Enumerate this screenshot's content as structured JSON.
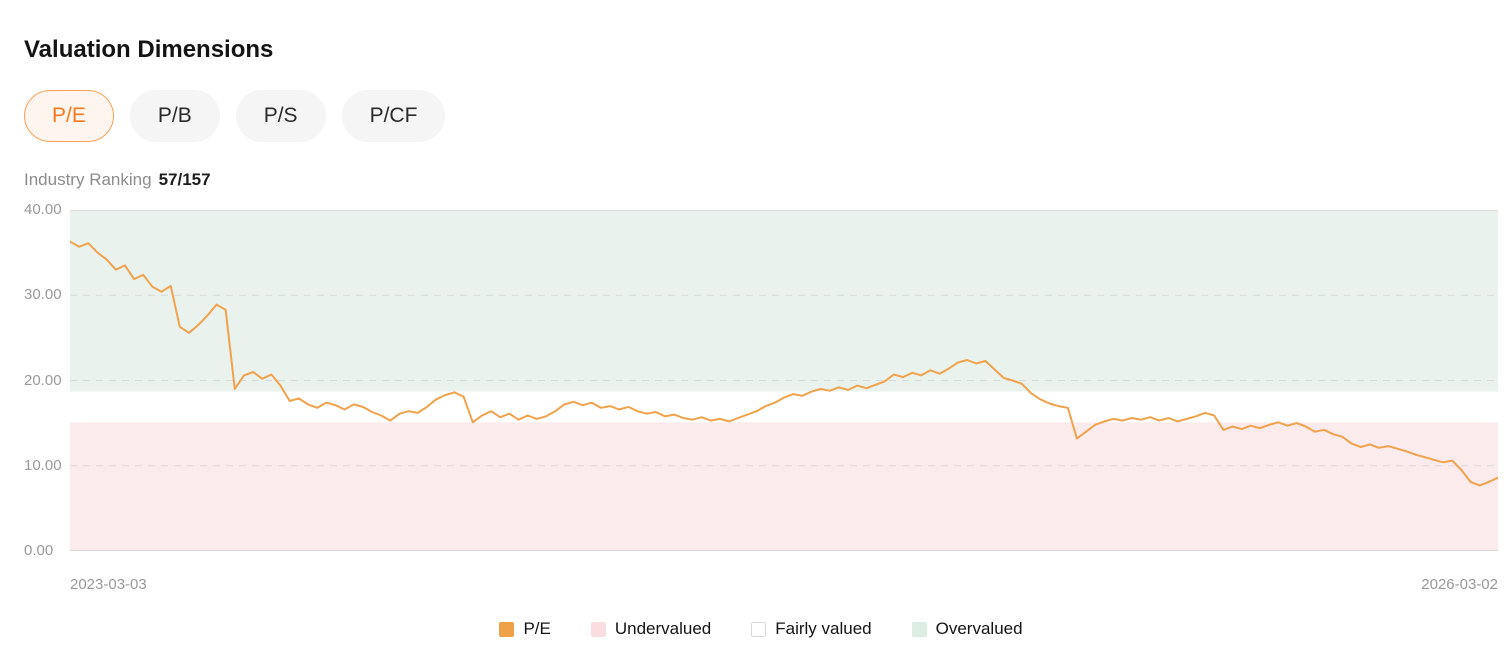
{
  "header": {
    "title": "Valuation Dimensions"
  },
  "tabs": {
    "items": [
      {
        "label": "P/E",
        "selected": true
      },
      {
        "label": "P/B",
        "selected": false
      },
      {
        "label": "P/S",
        "selected": false
      },
      {
        "label": "P/CF",
        "selected": false
      }
    ]
  },
  "ranking": {
    "label": "Industry Ranking",
    "value": "57/157"
  },
  "colors": {
    "accent_orange": "#F57A1F",
    "line_orange": "#F0A24C",
    "overvalued_band": "#EAF2ED",
    "undervalued_band": "#FCEBEC",
    "grid_gray": "#D9D9D9",
    "axis_text": "#999999"
  },
  "chart_data": {
    "type": "line",
    "title": "P/E valuation history vs industry bands",
    "xlabel": "",
    "ylabel": "P/E",
    "ylim": [
      0,
      40
    ],
    "yticks": [
      0,
      10,
      20,
      30,
      40
    ],
    "grid": "dashed-horizontal",
    "x_start_label": "2023-03-03",
    "x_end_label": "2026-03-02",
    "line_color": "#F0A24C",
    "bands": [
      {
        "name": "Overvalued",
        "range": [
          18.7,
          40
        ],
        "color": "#EAF2ED"
      },
      {
        "name": "Fairly valued",
        "range": [
          15.1,
          18.7
        ],
        "color": "#FFFFFF"
      },
      {
        "name": "Undervalued",
        "range": [
          0,
          15.1
        ],
        "color": "#FCEBEC"
      }
    ],
    "series": [
      {
        "name": "P/E",
        "values": [
          36.3,
          35.7,
          36.1,
          35.0,
          34.2,
          33.0,
          33.5,
          31.9,
          32.4,
          31.0,
          30.4,
          31.1,
          26.3,
          25.6,
          26.5,
          27.6,
          28.9,
          28.3,
          19.0,
          20.6,
          21.0,
          20.2,
          20.7,
          19.4,
          17.6,
          17.9,
          17.2,
          16.8,
          17.4,
          17.1,
          16.6,
          17.2,
          16.9,
          16.3,
          15.9,
          15.3,
          16.1,
          16.4,
          16.2,
          16.9,
          17.8,
          18.3,
          18.6,
          18.1,
          15.1,
          15.9,
          16.4,
          15.7,
          16.1,
          15.4,
          15.9,
          15.5,
          15.8,
          16.4,
          17.2,
          17.5,
          17.1,
          17.4,
          16.8,
          17.0,
          16.6,
          16.9,
          16.4,
          16.1,
          16.3,
          15.8,
          16.0,
          15.6,
          15.4,
          15.7,
          15.3,
          15.5,
          15.2,
          15.6,
          16.0,
          16.4,
          17.0,
          17.4,
          18.0,
          18.4,
          18.2,
          18.7,
          19.0,
          18.8,
          19.2,
          18.9,
          19.4,
          19.1,
          19.5,
          19.9,
          20.7,
          20.4,
          20.9,
          20.6,
          21.2,
          20.8,
          21.4,
          22.1,
          22.4,
          22.0,
          22.3,
          21.3,
          20.3,
          20.0,
          19.6,
          18.5,
          17.8,
          17.3,
          17.0,
          16.8,
          13.2,
          14.0,
          14.8,
          15.2,
          15.5,
          15.3,
          15.6,
          15.4,
          15.7,
          15.3,
          15.6,
          15.2,
          15.5,
          15.8,
          16.2,
          15.9,
          14.2,
          14.6,
          14.3,
          14.7,
          14.4,
          14.8,
          15.1,
          14.7,
          15.0,
          14.6,
          14.0,
          14.2,
          13.7,
          13.4,
          12.6,
          12.2,
          12.5,
          12.1,
          12.3,
          12.0,
          11.7,
          11.3,
          11.0,
          10.7,
          10.4,
          10.6,
          9.5,
          8.1,
          7.7,
          8.1,
          8.6
        ]
      }
    ]
  },
  "legend": {
    "items": [
      {
        "label": "P/E",
        "color": "#EFA149",
        "bordered": false
      },
      {
        "label": "Undervalued",
        "color": "#FADDE0",
        "bordered": false
      },
      {
        "label": "Fairly valued",
        "color": "#FFFFFF",
        "bordered": true
      },
      {
        "label": "Overvalued",
        "color": "#DCEDE3",
        "bordered": false
      }
    ]
  }
}
